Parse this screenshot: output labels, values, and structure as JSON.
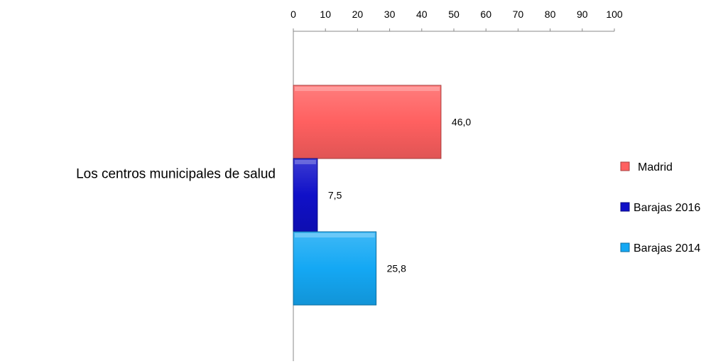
{
  "chart_data": {
    "type": "bar",
    "orientation": "horizontal",
    "categories": [
      "Los  centros municipales de salud"
    ],
    "xlim": [
      0,
      100
    ],
    "x_ticks": [
      0,
      10,
      20,
      30,
      40,
      50,
      60,
      70,
      80,
      90,
      100
    ],
    "x_axis_position": "top",
    "grid": false,
    "legend_position": "right",
    "series": [
      {
        "name": "Madrid",
        "values": [
          46.0
        ],
        "labels": [
          "46,0"
        ],
        "color": "#ff6060"
      },
      {
        "name": "Barajas 2016",
        "values": [
          7.5
        ],
        "labels": [
          "7,5"
        ],
        "color": "#1010c8"
      },
      {
        "name": "Barajas 2014",
        "values": [
          25.8
        ],
        "labels": [
          "25,8"
        ],
        "color": "#14a8f4"
      }
    ]
  }
}
